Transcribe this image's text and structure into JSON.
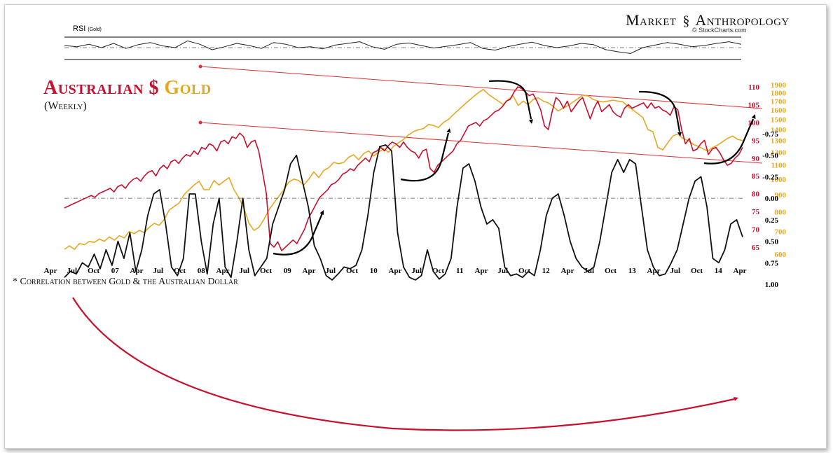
{
  "brand": {
    "name_left": "Market",
    "name_right": "Anthropology",
    "source": "© StockCharts.com"
  },
  "rsi": {
    "label": "RSI",
    "sub": "(Gold)"
  },
  "title": {
    "part1": "Australian $",
    "part2": "Gold",
    "sub": "(Weekly)"
  },
  "corr_note": "* Correlation between Gold & the Australian Dollar",
  "colors": {
    "aud": "#c8102e",
    "gold": "#e5a823",
    "corr": "#111111",
    "arrow": "#c8102e",
    "trend": "#e03030"
  },
  "chart_data": [
    {
      "type": "line",
      "series": [
        {
          "name": "RSI",
          "values": [
            55,
            52,
            58,
            50,
            60,
            48,
            57,
            62,
            54,
            50,
            66,
            58,
            45,
            52,
            60,
            55,
            48,
            62,
            58,
            50,
            52,
            47,
            56,
            60,
            64,
            52,
            46,
            58,
            61,
            55,
            49,
            53,
            57,
            62,
            48,
            44,
            52,
            58,
            63,
            55,
            50,
            54,
            60,
            57,
            45,
            40,
            36,
            50,
            56,
            62,
            58,
            52,
            55,
            60,
            64,
            58
          ]
        }
      ],
      "overbought": 70,
      "oversold": 30,
      "mid": 50
    },
    {
      "type": "line",
      "title": "Australian $ Gold",
      "subtitle": "(Weekly)",
      "x_ticks": [
        "Apr",
        "Jul",
        "Oct",
        "07",
        "Apr",
        "Jul",
        "Oct",
        "08",
        "Apr",
        "Jul",
        "Oct",
        "09",
        "Apr",
        "Jul",
        "Oct",
        "10",
        "Apr",
        "Jul",
        "Oct",
        "11",
        "Apr",
        "Jul",
        "Oct",
        "12",
        "Apr",
        "Jul",
        "Oct",
        "13",
        "Apr",
        "Jul",
        "Oct",
        "14",
        "Apr"
      ],
      "left_axis": {
        "ticks": [
          65,
          70,
          75,
          80,
          85,
          90,
          95,
          100,
          105,
          110
        ]
      },
      "right_axis": {
        "ticks": [
          600,
          700,
          800,
          900,
          1000,
          1100,
          1200,
          1300,
          1400,
          1500,
          1600,
          1700,
          1800,
          1900
        ]
      },
      "series": [
        {
          "name": "Australian $",
          "axis": "left",
          "values": [
            76,
            76.5,
            77,
            77.5,
            78,
            78.5,
            79,
            79.5,
            79,
            80,
            80.5,
            81,
            81.5,
            80.5,
            82,
            82.5,
            81.5,
            83,
            84,
            84.5,
            83.5,
            85,
            86,
            86.5,
            85,
            87,
            88,
            87,
            89,
            89.5,
            88.5,
            90,
            91,
            90.5,
            92,
            91,
            93,
            92.5,
            94,
            93.5,
            92,
            94.5,
            95,
            94,
            96,
            95.5,
            97,
            96,
            93,
            94.5,
            95,
            92,
            86,
            80,
            66,
            65,
            66.5,
            64,
            65,
            66,
            67,
            66,
            68,
            70,
            73,
            75,
            77,
            79,
            80,
            81,
            82.5,
            83,
            84,
            85.5,
            86,
            87,
            86.5,
            88,
            89,
            90,
            89,
            91.5,
            92,
            93,
            92,
            93.5,
            94.5,
            94,
            93,
            94.5,
            93,
            92,
            91.5,
            90,
            92,
            92.5,
            87,
            86,
            88,
            89,
            90,
            91,
            92,
            94,
            95,
            97,
            99,
            99.5,
            100,
            99,
            100.5,
            101,
            102,
            103,
            103.5,
            104.5,
            106,
            106.5,
            108.5,
            110,
            109.5,
            108.5,
            107.5,
            108,
            106,
            103.5,
            99,
            98,
            103,
            107,
            106,
            104,
            106,
            103,
            104.5,
            106,
            107,
            104,
            101,
            104,
            106,
            103,
            104,
            105,
            103,
            102,
            101.5,
            104,
            105,
            104,
            104.5,
            105,
            105.5,
            104,
            105.5,
            104,
            104.5,
            103.5,
            103,
            102,
            104.5,
            103.5,
            98,
            94,
            95.5,
            92,
            92.5,
            94,
            95,
            91,
            92.5,
            93,
            91.5,
            89.5,
            88,
            88.5,
            90,
            91,
            93
          ]
        },
        {
          "name": "Gold",
          "axis": "right",
          "values": [
            620,
            635,
            620,
            645,
            640,
            655,
            650,
            665,
            655,
            675,
            660,
            680,
            670,
            700,
            690,
            705,
            695,
            720,
            740,
            730,
            760,
            810,
            830,
            850,
            900,
            930,
            960,
            985,
            930,
            930,
            990,
            960,
            985,
            1010,
            930,
            880,
            820,
            740,
            705,
            720,
            760,
            810,
            850,
            890,
            930,
            980,
            1000,
            990,
            960,
            1000,
            1050,
            1010,
            1060,
            1080,
            1120,
            1110,
            1120,
            1160,
            1180,
            1140,
            1190,
            1210,
            1170,
            1200,
            1230,
            1200,
            1250,
            1280,
            1310,
            1350,
            1380,
            1400,
            1410,
            1450,
            1440,
            1420,
            1470,
            1500,
            1550,
            1600,
            1650,
            1700,
            1750,
            1800,
            1840,
            1780,
            1740,
            1700,
            1660,
            1720,
            1760,
            1650,
            1700,
            1660,
            1720,
            1740,
            1700,
            1680,
            1640,
            1590,
            1620,
            1650,
            1690,
            1730,
            1770,
            1760,
            1720,
            1700,
            1690,
            1700,
            1710,
            1700,
            1690,
            1640,
            1600,
            1560,
            1520,
            1400,
            1380,
            1240,
            1220,
            1280,
            1340,
            1360,
            1320,
            1300,
            1270,
            1250,
            1230,
            1210,
            1240,
            1260,
            1290,
            1320,
            1340,
            1310,
            1300
          ]
        }
      ],
      "trendlines": "2 parallel descending channel lines"
    },
    {
      "type": "line",
      "title": "* Correlation between Gold & the Australian Dollar",
      "y_ticks": [
        "1.00",
        "0.75",
        "0.50",
        "0.25",
        "0.00",
        "-0.25",
        "-0.50",
        "-0.75"
      ],
      "ylim": [
        -0.75,
        1.0
      ],
      "series": [
        {
          "name": "Correlation",
          "values": [
            0.92,
            0.85,
            0.88,
            0.75,
            0.8,
            0.65,
            0.82,
            0.6,
            0.78,
            0.5,
            0.7,
            0.4,
            0.85,
            0.6,
            0.2,
            -0.05,
            -0.1,
            0.3,
            0.8,
            0.9,
            0.7,
            -0.05,
            -0.05,
            0.5,
            0.88,
            0.3,
            0.0,
            0.8,
            0.92,
            0.5,
            0.0,
            0.6,
            0.9,
            0.8,
            0.7,
            0.3,
            0.1,
            -0.1,
            -0.4,
            -0.5,
            -0.2,
            0.1,
            0.55,
            0.7,
            0.9,
            0.95,
            0.88,
            0.8,
            0.82,
            0.78,
            0.6,
            0.2,
            -0.3,
            -0.6,
            -0.62,
            -0.55,
            0.4,
            0.8,
            0.92,
            0.95,
            0.9,
            0.6,
            0.85,
            0.94,
            0.88,
            0.7,
            0.1,
            -0.35,
            -0.4,
            -0.2,
            0.1,
            0.3,
            0.25,
            0.35,
            0.8,
            0.9,
            0.88,
            0.92,
            0.85,
            0.9,
            0.6,
            0.2,
            0.0,
            -0.05,
            0.2,
            0.5,
            0.7,
            0.8,
            0.85,
            0.8,
            0.5,
            0.1,
            -0.3,
            -0.45,
            -0.3,
            -0.45,
            -0.4,
            0.1,
            0.6,
            0.8,
            0.9,
            0.88,
            0.75,
            0.6,
            0.3,
            0.0,
            -0.2,
            -0.25,
            0.1,
            0.7,
            0.75,
            0.6,
            0.3,
            0.25,
            0.45
          ]
        }
      ]
    }
  ]
}
